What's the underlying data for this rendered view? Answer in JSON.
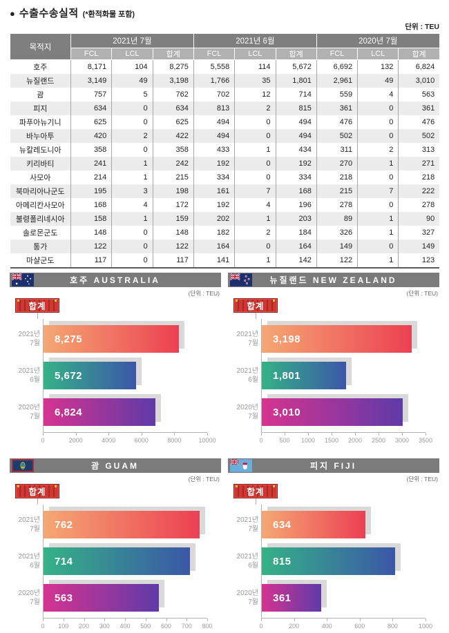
{
  "page": {
    "bullet": "●",
    "title": "수출수송실적",
    "title_note": "(*환적화물 포함)",
    "unit_label": "단위 : TEU"
  },
  "colors": {
    "header_gray": "#7b7b7b",
    "subheader_gray": "#b1b1b1",
    "alt_row": "#ececec",
    "badge_red": "#cf3732",
    "bar_shadow": "#d9d9d9",
    "bar_gradient_2021_07": [
      "#f5a873",
      "#ec4053"
    ],
    "bar_gradient_2021_06": [
      "#35b287",
      "#3b57a7"
    ],
    "bar_gradient_2020_07": [
      "#d63390",
      "#5f3aa8"
    ]
  },
  "table": {
    "dest_header": "목적지",
    "col_groups": [
      "2021년 7월",
      "2021년 6월",
      "2020년 7월"
    ],
    "sub_headers": [
      "FCL",
      "LCL",
      "합계"
    ],
    "rows": [
      {
        "dest": "호주",
        "values": [
          "8,171",
          "104",
          "8,275",
          "5,558",
          "114",
          "5,672",
          "6,692",
          "132",
          "6,824"
        ]
      },
      {
        "dest": "뉴질랜드",
        "values": [
          "3,149",
          "49",
          "3,198",
          "1,766",
          "35",
          "1,801",
          "2,961",
          "49",
          "3,010"
        ]
      },
      {
        "dest": "괌",
        "values": [
          "757",
          "5",
          "762",
          "702",
          "12",
          "714",
          "559",
          "4",
          "563"
        ]
      },
      {
        "dest": "피지",
        "values": [
          "634",
          "0",
          "634",
          "813",
          "2",
          "815",
          "361",
          "0",
          "361"
        ]
      },
      {
        "dest": "파푸아뉴기니",
        "values": [
          "625",
          "0",
          "625",
          "494",
          "0",
          "494",
          "476",
          "0",
          "476"
        ]
      },
      {
        "dest": "바누아투",
        "values": [
          "420",
          "2",
          "422",
          "494",
          "0",
          "494",
          "502",
          "0",
          "502"
        ]
      },
      {
        "dest": "뉴칼레도니아",
        "values": [
          "358",
          "0",
          "358",
          "433",
          "1",
          "434",
          "311",
          "2",
          "313"
        ]
      },
      {
        "dest": "키리바티",
        "values": [
          "241",
          "1",
          "242",
          "192",
          "0",
          "192",
          "270",
          "1",
          "271"
        ]
      },
      {
        "dest": "사모아",
        "values": [
          "214",
          "1",
          "215",
          "334",
          "0",
          "334",
          "218",
          "0",
          "218"
        ]
      },
      {
        "dest": "북마리아나군도",
        "values": [
          "195",
          "3",
          "198",
          "161",
          "7",
          "168",
          "215",
          "7",
          "222"
        ]
      },
      {
        "dest": "아메리칸사모아",
        "values": [
          "168",
          "4",
          "172",
          "192",
          "4",
          "196",
          "278",
          "0",
          "278"
        ]
      },
      {
        "dest": "불령폴리네시아",
        "values": [
          "158",
          "1",
          "159",
          "202",
          "1",
          "203",
          "89",
          "1",
          "90"
        ]
      },
      {
        "dest": "솔로몬군도",
        "values": [
          "148",
          "0",
          "148",
          "182",
          "2",
          "184",
          "326",
          "1",
          "327"
        ]
      },
      {
        "dest": "통가",
        "values": [
          "122",
          "0",
          "122",
          "164",
          "0",
          "164",
          "149",
          "0",
          "149"
        ]
      },
      {
        "dest": "마샬군도",
        "values": [
          "117",
          "0",
          "117",
          "141",
          "1",
          "142",
          "122",
          "1",
          "123"
        ]
      }
    ]
  },
  "chart_data": [
    {
      "type": "bar",
      "orientation": "horizontal",
      "title": "호주 AUSTRALIA",
      "flag": "australia",
      "unit_note": "(단위 : TEU)",
      "legend": "합계",
      "categories": [
        "2021년 7월",
        "2021년 6월",
        "2020년 7월"
      ],
      "values": [
        8275,
        5672,
        6824
      ],
      "value_labels": [
        "8,275",
        "5,672",
        "6,824"
      ],
      "xlim": [
        0,
        10000
      ],
      "xticks": [
        0,
        2000,
        4000,
        6000,
        8000,
        10000
      ]
    },
    {
      "type": "bar",
      "orientation": "horizontal",
      "title": "뉴질랜드 NEW ZEALAND",
      "flag": "new-zealand",
      "unit_note": "(단위 : TEU)",
      "legend": "합계",
      "categories": [
        "2021년 7월",
        "2021년 6월",
        "2020년 7월"
      ],
      "values": [
        3198,
        1801,
        3010
      ],
      "value_labels": [
        "3,198",
        "1,801",
        "3,010"
      ],
      "xlim": [
        0,
        3500
      ],
      "xticks": [
        0,
        500,
        1000,
        1500,
        2000,
        2500,
        3000,
        3500
      ]
    },
    {
      "type": "bar",
      "orientation": "horizontal",
      "title": "괌 GUAM",
      "flag": "guam",
      "unit_note": "(단위 : TEU)",
      "legend": "합계",
      "categories": [
        "2021년 7월",
        "2021년 6월",
        "2020년 7월"
      ],
      "values": [
        762,
        714,
        563
      ],
      "value_labels": [
        "762",
        "714",
        "563"
      ],
      "xlim": [
        0,
        800
      ],
      "xticks": [
        0,
        100,
        200,
        300,
        400,
        500,
        600,
        700,
        800
      ]
    },
    {
      "type": "bar",
      "orientation": "horizontal",
      "title": "피지 FIJI",
      "flag": "fiji",
      "unit_note": "(단위 : TEU)",
      "legend": "합계",
      "categories": [
        "2021년 7월",
        "2021년 6월",
        "2020년 7월"
      ],
      "values": [
        634,
        815,
        361
      ],
      "value_labels": [
        "634",
        "815",
        "361"
      ],
      "xlim": [
        0,
        1000
      ],
      "xticks": [
        0,
        200,
        400,
        600,
        800,
        1000
      ]
    }
  ]
}
